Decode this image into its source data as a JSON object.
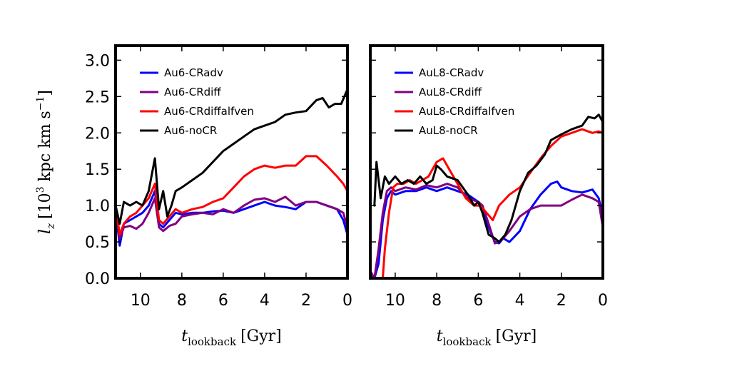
{
  "chart_data": [
    {
      "type": "line",
      "panel": "left",
      "xlabel": {
        "main": "t",
        "sub": "lookback",
        "unit": "[Gyr]"
      },
      "ylabel": {
        "main": "l",
        "sub": "z",
        "unit_pre": "[10",
        "unit_exp": "3",
        "unit_mid": " kpc km s",
        "unit_exp2": "−1",
        "unit_post": "]"
      },
      "xlim": [
        11.2,
        0
      ],
      "ylim": [
        0,
        3.2
      ],
      "xticks": [
        10,
        8,
        6,
        4,
        2,
        0
      ],
      "yticks": [
        0.0,
        0.5,
        1.0,
        1.5,
        2.0,
        2.5,
        3.0
      ],
      "ytick_labels": [
        "0.0",
        "0.5",
        "1.0",
        "1.5",
        "2.0",
        "2.5",
        "3.0"
      ],
      "grid": false,
      "legend": "top-left",
      "series": [
        {
          "name": "Au6-CRadv",
          "color": "#0000ff",
          "x": [
            11.2,
            11.0,
            10.8,
            10.5,
            10.2,
            9.9,
            9.6,
            9.3,
            9.1,
            8.9,
            8.6,
            8.3,
            8.0,
            7.5,
            7.0,
            6.5,
            6.0,
            5.5,
            5.0,
            4.5,
            4.0,
            3.5,
            3.0,
            2.5,
            2.0,
            1.5,
            1.0,
            0.5,
            0.2,
            0.0
          ],
          "y": [
            0.95,
            0.45,
            0.75,
            0.8,
            0.85,
            0.9,
            1.0,
            1.2,
            0.75,
            0.7,
            0.8,
            0.9,
            0.88,
            0.9,
            0.9,
            0.92,
            0.93,
            0.9,
            0.95,
            1.0,
            1.05,
            1.0,
            0.98,
            0.95,
            1.05,
            1.05,
            1.0,
            0.95,
            0.8,
            0.6
          ]
        },
        {
          "name": "Au6-CRdiff",
          "color": "#800080",
          "x": [
            11.2,
            11.0,
            10.8,
            10.5,
            10.2,
            9.9,
            9.6,
            9.3,
            9.1,
            8.9,
            8.6,
            8.3,
            8.0,
            7.5,
            7.0,
            6.5,
            6.0,
            5.5,
            5.0,
            4.5,
            4.0,
            3.5,
            3.0,
            2.5,
            2.0,
            1.5,
            1.0,
            0.5,
            0.2,
            0.0
          ],
          "y": [
            0.95,
            0.55,
            0.7,
            0.72,
            0.68,
            0.75,
            0.9,
            1.1,
            0.7,
            0.65,
            0.72,
            0.75,
            0.85,
            0.88,
            0.9,
            0.88,
            0.95,
            0.9,
            1.0,
            1.08,
            1.1,
            1.05,
            1.12,
            1.0,
            1.05,
            1.05,
            1.0,
            0.95,
            0.9,
            0.7
          ]
        },
        {
          "name": "Au6-CRdiffalfven",
          "color": "#ff0000",
          "x": [
            11.2,
            11.0,
            10.8,
            10.5,
            10.2,
            9.9,
            9.6,
            9.3,
            9.1,
            8.9,
            8.6,
            8.3,
            8.0,
            7.5,
            7.0,
            6.5,
            6.0,
            5.5,
            5.0,
            4.5,
            4.0,
            3.5,
            3.0,
            2.5,
            2.0,
            1.5,
            1.0,
            0.5,
            0.2,
            0.0
          ],
          "y": [
            1.0,
            0.6,
            0.75,
            0.85,
            0.9,
            1.0,
            1.1,
            1.3,
            0.8,
            0.75,
            0.85,
            0.95,
            0.9,
            0.95,
            0.98,
            1.05,
            1.1,
            1.25,
            1.4,
            1.5,
            1.55,
            1.52,
            1.55,
            1.55,
            1.68,
            1.68,
            1.55,
            1.4,
            1.3,
            1.2
          ]
        },
        {
          "name": "Au6-noCR",
          "color": "#000000",
          "x": [
            11.2,
            11.0,
            10.8,
            10.5,
            10.2,
            9.9,
            9.6,
            9.3,
            9.1,
            8.9,
            8.7,
            8.5,
            8.3,
            8.0,
            7.5,
            7.0,
            6.5,
            6.0,
            5.5,
            5.0,
            4.5,
            4.0,
            3.5,
            3.0,
            2.5,
            2.0,
            1.5,
            1.2,
            0.9,
            0.6,
            0.3,
            0.0
          ],
          "y": [
            1.0,
            0.75,
            1.05,
            1.0,
            1.05,
            1.0,
            1.2,
            1.65,
            0.95,
            1.2,
            0.85,
            1.0,
            1.2,
            1.25,
            1.35,
            1.45,
            1.6,
            1.75,
            1.85,
            1.95,
            2.05,
            2.1,
            2.15,
            2.25,
            2.28,
            2.3,
            2.45,
            2.48,
            2.35,
            2.4,
            2.4,
            2.6
          ]
        }
      ]
    },
    {
      "type": "line",
      "panel": "right",
      "xlabel": {
        "main": "t",
        "sub": "lookback",
        "unit": "[Gyr]"
      },
      "xlim": [
        11.2,
        0
      ],
      "ylim": [
        0,
        3.2
      ],
      "xticks": [
        10,
        8,
        6,
        4,
        2,
        0
      ],
      "grid": false,
      "legend": "top-left",
      "series": [
        {
          "name": "AuL8-CRadv",
          "color": "#0000ff",
          "x": [
            11.2,
            11.0,
            10.8,
            10.6,
            10.4,
            10.2,
            10.0,
            9.5,
            9.0,
            8.5,
            8.0,
            7.5,
            7.0,
            6.5,
            6.0,
            5.8,
            5.5,
            5.2,
            5.0,
            4.8,
            4.5,
            4.0,
            3.5,
            3.0,
            2.5,
            2.2,
            2.0,
            1.5,
            1.0,
            0.5,
            0.2,
            0.0
          ],
          "y": [
            0.05,
            0.0,
            0.2,
            0.8,
            1.1,
            1.2,
            1.15,
            1.2,
            1.2,
            1.25,
            1.2,
            1.25,
            1.2,
            1.15,
            1.05,
            1.0,
            0.7,
            0.5,
            0.48,
            0.55,
            0.5,
            0.65,
            0.95,
            1.15,
            1.3,
            1.33,
            1.25,
            1.2,
            1.18,
            1.22,
            1.1,
            0.85
          ]
        },
        {
          "name": "AuL8-CRdiff",
          "color": "#800080",
          "x": [
            11.2,
            11.0,
            10.8,
            10.6,
            10.4,
            10.2,
            10.0,
            9.5,
            9.0,
            8.5,
            8.0,
            7.5,
            7.0,
            6.5,
            6.0,
            5.8,
            5.5,
            5.2,
            5.0,
            4.8,
            4.5,
            4.0,
            3.5,
            3.0,
            2.5,
            2.0,
            1.5,
            1.0,
            0.5,
            0.2,
            0.0
          ],
          "y": [
            0.1,
            0.0,
            0.4,
            0.9,
            1.2,
            1.25,
            1.2,
            1.25,
            1.22,
            1.28,
            1.25,
            1.3,
            1.25,
            1.1,
            1.05,
            1.0,
            0.75,
            0.48,
            0.5,
            0.55,
            0.65,
            0.85,
            0.95,
            1.0,
            1.0,
            1.0,
            1.08,
            1.15,
            1.1,
            1.05,
            0.7
          ]
        },
        {
          "name": "AuL8-CRdiffalfven",
          "color": "#ff0000",
          "x": [
            10.6,
            10.5,
            10.3,
            10.1,
            9.9,
            9.6,
            9.3,
            9.0,
            8.7,
            8.4,
            8.0,
            7.7,
            7.4,
            7.0,
            6.6,
            6.2,
            5.9,
            5.6,
            5.3,
            5.0,
            4.5,
            4.0,
            3.5,
            3.0,
            2.5,
            2.0,
            1.5,
            1.0,
            0.5,
            0.2,
            0.0
          ],
          "y": [
            0.0,
            0.4,
            0.9,
            1.25,
            1.3,
            1.3,
            1.35,
            1.3,
            1.35,
            1.4,
            1.6,
            1.65,
            1.5,
            1.3,
            1.1,
            1.0,
            1.0,
            0.9,
            0.8,
            1.0,
            1.15,
            1.25,
            1.45,
            1.65,
            1.82,
            1.95,
            2.0,
            2.05,
            2.0,
            2.02,
            2.0
          ]
        },
        {
          "name": "AuL8-noCR",
          "color": "#000000",
          "x": [
            11.0,
            10.9,
            10.7,
            10.5,
            10.3,
            10.0,
            9.7,
            9.4,
            9.1,
            8.8,
            8.5,
            8.2,
            8.0,
            7.8,
            7.5,
            7.0,
            6.5,
            6.2,
            6.0,
            5.8,
            5.5,
            5.2,
            5.0,
            4.7,
            4.4,
            4.0,
            3.6,
            3.2,
            2.8,
            2.5,
            2.0,
            1.5,
            1.0,
            0.7,
            0.4,
            0.2,
            0.0
          ],
          "y": [
            1.0,
            1.6,
            1.1,
            1.4,
            1.3,
            1.4,
            1.3,
            1.35,
            1.3,
            1.4,
            1.3,
            1.35,
            1.55,
            1.5,
            1.4,
            1.35,
            1.15,
            1.0,
            1.05,
            0.9,
            0.6,
            0.55,
            0.5,
            0.6,
            0.8,
            1.2,
            1.45,
            1.55,
            1.7,
            1.9,
            1.98,
            2.05,
            2.1,
            2.22,
            2.2,
            2.25,
            2.15
          ]
        }
      ]
    }
  ]
}
